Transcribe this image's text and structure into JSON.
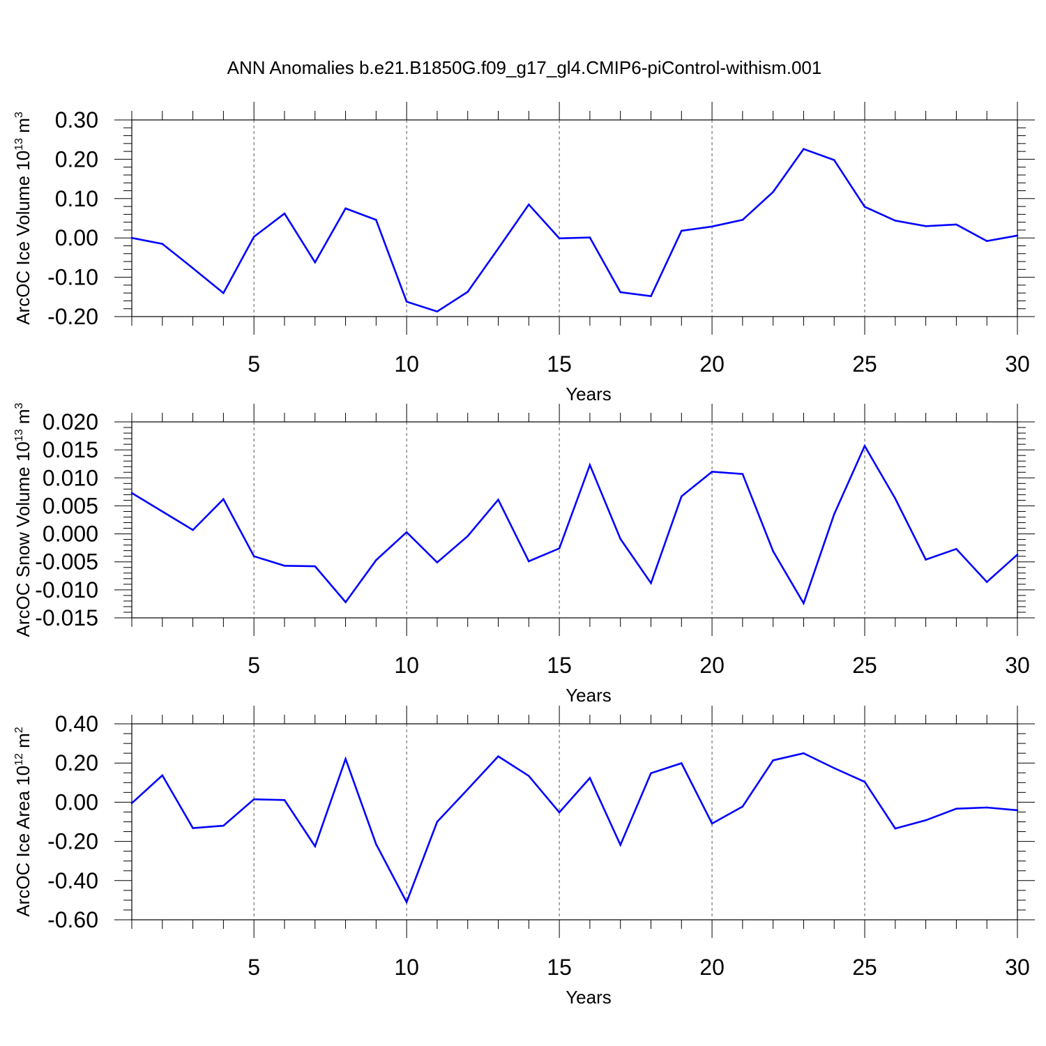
{
  "title": "ANN Anomalies b.e21.B1850G.f09_g17_gl4.CMIP6-piControl-withism.001",
  "chart_data": [
    {
      "type": "line",
      "title": "ANN Anomalies b.e21.B1850G.f09_g17_gl4.CMIP6-piControl-withism.001",
      "xlabel": "Years",
      "ylabel_main": "ArcOC Ice Volume 10",
      "ylabel_exp": "13",
      "ylabel_unit": "m",
      "ylabel_unit_exp": "3",
      "xlim": [
        1,
        30
      ],
      "ylim": [
        -0.2,
        0.3
      ],
      "xticks": [
        "5",
        "10",
        "15",
        "20",
        "25",
        "30"
      ],
      "yticks": [
        "-0.20",
        "-0.10",
        "0.00",
        "0.10",
        "0.20",
        "0.30"
      ],
      "line_color": "#0000ff",
      "series": [
        {
          "name": "ArcOC Ice Volume",
          "x": [
            1,
            2,
            3,
            4,
            5,
            6,
            7,
            8,
            9,
            10,
            11,
            12,
            13,
            14,
            15,
            16,
            17,
            18,
            19,
            20,
            21,
            22,
            23,
            24,
            25,
            26,
            27,
            28,
            29,
            30
          ],
          "values": [
            0.0,
            -0.015,
            -0.077,
            -0.14,
            0.003,
            0.062,
            -0.062,
            0.075,
            0.046,
            -0.162,
            -0.187,
            -0.137,
            -0.027,
            0.085,
            -0.001,
            0.001,
            -0.138,
            -0.148,
            0.018,
            0.029,
            0.046,
            0.117,
            0.226,
            0.198,
            0.079,
            0.044,
            0.03,
            0.034,
            -0.008,
            0.006
          ]
        }
      ]
    },
    {
      "type": "line",
      "xlabel": "Years",
      "ylabel_main": "ArcOC Snow Volume 10",
      "ylabel_exp": "13",
      "ylabel_unit": "m",
      "ylabel_unit_exp": "3",
      "xlim": [
        1,
        30
      ],
      "ylim": [
        -0.015,
        0.02
      ],
      "xticks": [
        "5",
        "10",
        "15",
        "20",
        "25",
        "30"
      ],
      "yticks": [
        "-0.015",
        "-0.010",
        "-0.005",
        "0.000",
        "0.005",
        "0.010",
        "0.015",
        "0.020"
      ],
      "line_color": "#0000ff",
      "series": [
        {
          "name": "ArcOC Snow Volume",
          "x": [
            1,
            2,
            3,
            4,
            5,
            6,
            7,
            8,
            9,
            10,
            11,
            12,
            13,
            14,
            15,
            16,
            17,
            18,
            19,
            20,
            21,
            22,
            23,
            24,
            25,
            26,
            27,
            28,
            29,
            30
          ],
          "values": [
            0.0073,
            0.004,
            0.0007,
            0.0062,
            -0.004,
            -0.0057,
            -0.0058,
            -0.0122,
            -0.0047,
            0.0003,
            -0.0051,
            -0.0004,
            0.0061,
            -0.0049,
            -0.0026,
            0.0123,
            -0.0009,
            -0.0088,
            0.0067,
            0.0111,
            0.0107,
            -0.0031,
            -0.0124,
            0.0035,
            0.0157,
            0.0063,
            -0.0046,
            -0.0027,
            -0.0086,
            -0.0037
          ]
        }
      ]
    },
    {
      "type": "line",
      "xlabel": "Years",
      "ylabel_main": "ArcOC Ice Area 10",
      "ylabel_exp": "12",
      "ylabel_unit": "m",
      "ylabel_unit_exp": "2",
      "xlim": [
        1,
        30
      ],
      "ylim": [
        -0.6,
        0.4
      ],
      "xticks": [
        "5",
        "10",
        "15",
        "20",
        "25",
        "30"
      ],
      "yticks": [
        "-0.60",
        "-0.40",
        "-0.20",
        "0.00",
        "0.20",
        "0.40"
      ],
      "line_color": "#0000ff",
      "series": [
        {
          "name": "ArcOC Ice Area",
          "x": [
            1,
            2,
            3,
            4,
            5,
            6,
            7,
            8,
            9,
            10,
            11,
            12,
            13,
            14,
            15,
            16,
            17,
            18,
            19,
            20,
            21,
            22,
            23,
            24,
            25,
            26,
            27,
            28,
            29,
            30
          ],
          "values": [
            -0.005,
            0.137,
            -0.132,
            -0.12,
            0.015,
            0.011,
            -0.225,
            0.221,
            -0.214,
            -0.51,
            -0.1,
            0.066,
            0.234,
            0.134,
            -0.052,
            0.124,
            -0.218,
            0.148,
            0.199,
            -0.109,
            -0.022,
            0.214,
            0.25,
            0.174,
            0.104,
            -0.134,
            -0.092,
            -0.033,
            -0.027,
            -0.041
          ]
        }
      ]
    }
  ]
}
